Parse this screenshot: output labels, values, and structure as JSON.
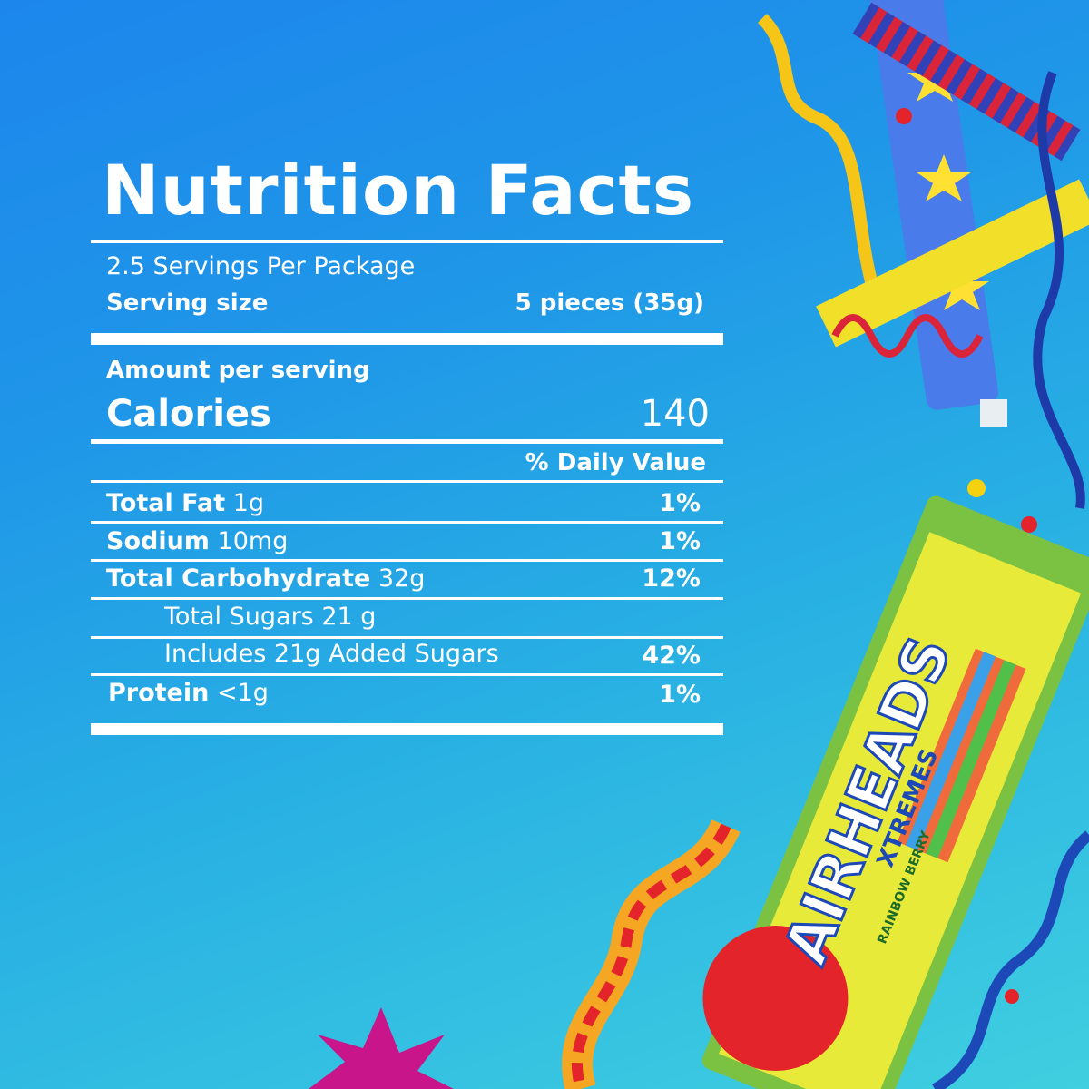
{
  "label": {
    "title": "Nutrition Facts",
    "servings_per_package": "2.5 Servings Per Package",
    "serving_size_label": "Serving size",
    "serving_size_value": "5 pieces (35g)",
    "amount_per_serving": "Amount per serving",
    "calories_label": "Calories",
    "calories_value": "140",
    "daily_value_header": "% Daily Value",
    "rows": [
      {
        "name": "Total Fat",
        "amount": "1g",
        "dv": "1%"
      },
      {
        "name": "Sodium",
        "amount": "10mg",
        "dv": "1%"
      },
      {
        "name": "Total Carbohydrate",
        "amount": "32g",
        "dv": "12%"
      },
      {
        "name": "",
        "amount": "Total Sugars 21 g",
        "dv": ""
      },
      {
        "name": "",
        "amount": "Includes 21g Added Sugars",
        "dv": "42%"
      },
      {
        "name": "Protein",
        "amount": "<1g",
        "dv": "1%"
      }
    ]
  },
  "product": {
    "brand": "AIRHEADS",
    "line": "XTREMES",
    "flavor": "RAINBOW BERRY"
  },
  "colors": {
    "background_top": "#1c86ec",
    "background_bottom": "#3fcfe0",
    "text": "#ffffff",
    "package_green": "#7cc242",
    "package_yellow": "#e8ea3a",
    "logo_red": "#e3242b"
  }
}
